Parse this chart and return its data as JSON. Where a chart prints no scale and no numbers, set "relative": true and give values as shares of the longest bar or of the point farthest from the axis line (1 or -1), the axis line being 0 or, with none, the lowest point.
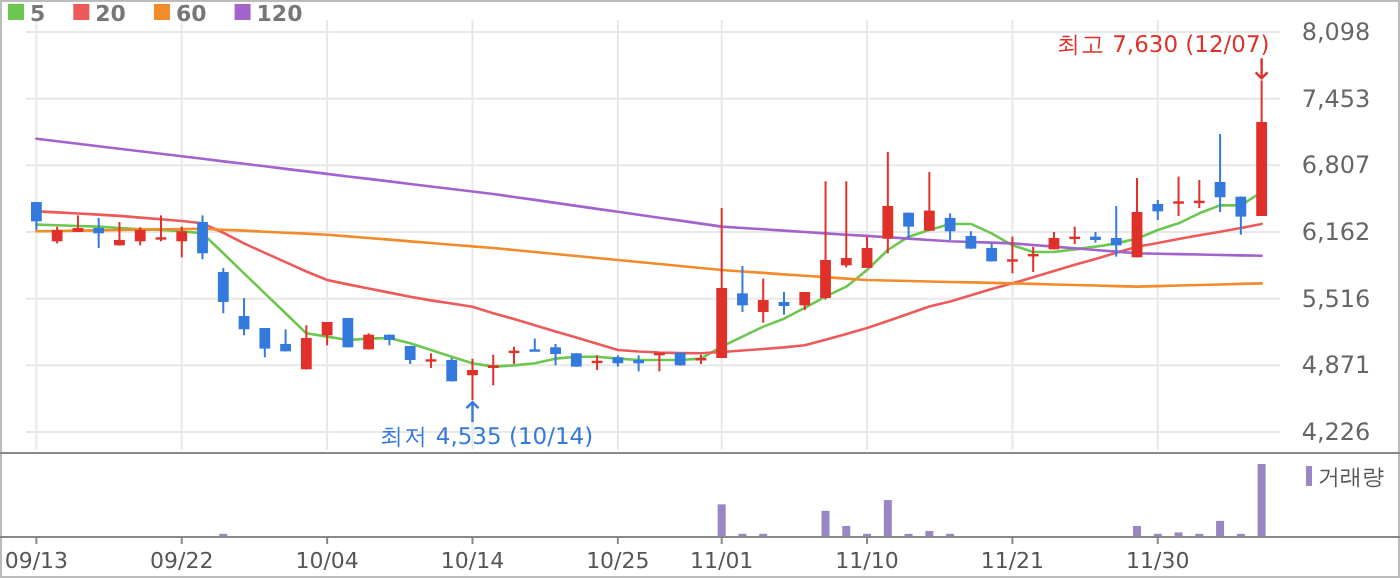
{
  "chart_data": [
    {
      "type": "candlestick",
      "categories": [
        "09/13",
        null,
        null,
        null,
        null,
        null,
        null,
        "09/22",
        null,
        null,
        null,
        null,
        null,
        null,
        "10/04",
        null,
        null,
        null,
        null,
        null,
        null,
        "10/14",
        null,
        null,
        null,
        null,
        null,
        null,
        "10/25",
        null,
        null,
        null,
        null,
        "11/01",
        null,
        null,
        null,
        null,
        null,
        null,
        "11/10",
        null,
        null,
        null,
        null,
        null,
        null,
        "11/21",
        null,
        null,
        null,
        null,
        null,
        null,
        "11/30",
        null,
        null,
        null,
        null,
        null
      ],
      "ohlc": [
        [
          6452,
          6452,
          6181,
          6265
        ],
        [
          6072,
          6214,
          6052,
          6181
        ],
        [
          6162,
          6323,
          6162,
          6201
        ],
        [
          6201,
          6298,
          6007,
          6149
        ],
        [
          6033,
          6259,
          6033,
          6085
        ],
        [
          6072,
          6208,
          6033,
          6181
        ],
        [
          6098,
          6323,
          6072,
          6111
        ],
        [
          6072,
          6214,
          5917,
          6169
        ],
        [
          6259,
          6323,
          5898,
          5956
        ],
        [
          5775,
          5814,
          5375,
          5485
        ],
        [
          5349,
          5523,
          5162,
          5220
        ],
        [
          5233,
          5233,
          4949,
          5033
        ],
        [
          5078,
          5220,
          5007,
          5007
        ],
        [
          4833,
          5259,
          4833,
          5136
        ],
        [
          5162,
          5291,
          5065,
          5291
        ],
        [
          5330,
          5330,
          5046,
          5046
        ],
        [
          5026,
          5181,
          5026,
          5168
        ],
        [
          5168,
          5168,
          5065,
          5117
        ],
        [
          5059,
          5059,
          4884,
          4923
        ],
        [
          4916,
          4988,
          4846,
          4930
        ],
        [
          4923,
          4942,
          4717,
          4717
        ],
        [
          4775,
          4936,
          4535,
          4826
        ],
        [
          4846,
          4975,
          4678,
          4871
        ],
        [
          4994,
          5052,
          4884,
          5013
        ],
        [
          5026,
          5130,
          5013,
          5013
        ],
        [
          5046,
          5078,
          4871,
          4981
        ],
        [
          4988,
          4988,
          4859,
          4859
        ],
        [
          4904,
          4968,
          4826,
          4916
        ],
        [
          4949,
          4968,
          4859,
          4891
        ],
        [
          4923,
          4968,
          4813,
          4891
        ],
        [
          4968,
          4994,
          4813,
          4994
        ],
        [
          4994,
          4994,
          4871,
          4871
        ],
        [
          4923,
          4975,
          4884,
          4942
        ],
        [
          4942,
          6394,
          4942,
          5620
        ],
        [
          5568,
          5833,
          5388,
          5452
        ],
        [
          5388,
          5710,
          5284,
          5504
        ],
        [
          5485,
          5581,
          5362,
          5446
        ],
        [
          5452,
          5581,
          5407,
          5581
        ],
        [
          5523,
          6653,
          5510,
          5891
        ],
        [
          5839,
          6653,
          5820,
          5910
        ],
        [
          5814,
          6117,
          5814,
          6007
        ],
        [
          6098,
          6936,
          5956,
          6414
        ],
        [
          6349,
          6349,
          6104,
          6214
        ],
        [
          6175,
          6743,
          6175,
          6369
        ],
        [
          6298,
          6343,
          6085,
          6169
        ],
        [
          6123,
          6169,
          6001,
          6001
        ],
        [
          6007,
          6052,
          5878,
          5878
        ],
        [
          5878,
          6117,
          5762,
          5898
        ],
        [
          5936,
          6020,
          5775,
          5949
        ],
        [
          5994,
          6162,
          5994,
          6104
        ],
        [
          6104,
          6214,
          6046,
          6117
        ],
        [
          6117,
          6162,
          6059,
          6085
        ],
        [
          6104,
          6414,
          5923,
          6033
        ],
        [
          5917,
          6685,
          5917,
          6356
        ],
        [
          6433,
          6472,
          6278,
          6362
        ],
        [
          6440,
          6698,
          6317,
          6459
        ],
        [
          6452,
          6665,
          6394,
          6465
        ],
        [
          6646,
          7111,
          6356,
          6498
        ],
        [
          6504,
          6504,
          6136,
          6311
        ],
        [
          6317,
          7630,
          6317,
          7227
        ]
      ],
      "colors": [
        "#3479de",
        "#e0302a",
        "#e0302a",
        "#3479de",
        "#e0302a",
        "#e0302a",
        "#e0302a",
        "#e0302a",
        "#3479de",
        "#3479de",
        "#3479de",
        "#3479de",
        "#3479de",
        "#e0302a",
        "#e0302a",
        "#3479de",
        "#e0302a",
        "#3479de",
        "#3479de",
        "#e0302a",
        "#3479de",
        "#e0302a",
        "#e0302a",
        "#e0302a",
        "#3479de",
        "#3479de",
        "#3479de",
        "#e0302a",
        "#3479de",
        "#3479de",
        "#e0302a",
        "#3479de",
        "#e0302a",
        "#e0302a",
        "#3479de",
        "#e0302a",
        "#3479de",
        "#e0302a",
        "#e0302a",
        "#e0302a",
        "#e0302a",
        "#e0302a",
        "#3479de",
        "#e0302a",
        "#3479de",
        "#3479de",
        "#3479de",
        "#e0302a",
        "#e0302a",
        "#e0302a",
        "#e0302a",
        "#3479de",
        "#3479de",
        "#e0302a",
        "#3479de",
        "#e0302a",
        "#e0302a",
        "#3479de",
        "#3479de",
        "#e0302a"
      ],
      "series": [
        {
          "type": "line",
          "name": "5",
          "color": "#6cc74f",
          "values": [
            6233,
            6227,
            6220,
            6214,
            6201,
            6188,
            6181,
            6169,
            6149,
            5956,
            5762,
            5568,
            5375,
            5181,
            5149,
            5117,
            5130,
            5136,
            5085,
            5020,
            4955,
            4891,
            4859,
            4871,
            4891,
            4936,
            4955,
            4955,
            4936,
            4923,
            4923,
            4923,
            4936,
            5052,
            5149,
            5246,
            5323,
            5427,
            5536,
            5633,
            5794,
            5988,
            6117,
            6181,
            6240,
            6240,
            6149,
            6033,
            5969,
            5969,
            5994,
            6020,
            6052,
            6098,
            6181,
            6246,
            6343,
            6420,
            6420,
            6549
          ]
        },
        {
          "type": "line",
          "name": "20",
          "color": "#ee5a5a",
          "values": [
            6362,
            6352,
            6341,
            6330,
            6318,
            6301,
            6285,
            6268,
            6246,
            6155,
            6052,
            5960,
            5870,
            5780,
            5698,
            5655,
            5615,
            5575,
            5535,
            5500,
            5470,
            5439,
            5375,
            5320,
            5260,
            5200,
            5140,
            5080,
            5020,
            5005,
            4995,
            4990,
            4988,
            5001,
            5015,
            5030,
            5045,
            5065,
            5120,
            5175,
            5233,
            5300,
            5370,
            5440,
            5490,
            5550,
            5610,
            5665,
            5725,
            5785,
            5845,
            5900,
            5960,
            6020,
            6055,
            6095,
            6130,
            6165,
            6200,
            6240
          ]
        },
        {
          "type": "line",
          "name": "60",
          "color": "#f28c2a",
          "values": [
            6169,
            6172,
            6175,
            6178,
            6181,
            6185,
            6188,
            6191,
            6194,
            6184,
            6175,
            6165,
            6155,
            6146,
            6136,
            6120,
            6104,
            6088,
            6071,
            6055,
            6039,
            6023,
            6007,
            5988,
            5968,
            5949,
            5930,
            5910,
            5891,
            5872,
            5852,
            5833,
            5814,
            5794,
            5780,
            5766,
            5752,
            5738,
            5725,
            5711,
            5697,
            5692,
            5688,
            5683,
            5678,
            5674,
            5669,
            5665,
            5660,
            5654,
            5649,
            5644,
            5638,
            5633,
            5638,
            5644,
            5649,
            5654,
            5660,
            5665
          ]
        },
        {
          "type": "line",
          "name": "120",
          "color": "#a263cc",
          "values": [
            7065,
            7041,
            7017,
            6992,
            6968,
            6944,
            6919,
            6895,
            6871,
            6846,
            6822,
            6798,
            6773,
            6749,
            6725,
            6700,
            6676,
            6652,
            6627,
            6603,
            6579,
            6554,
            6530,
            6501,
            6473,
            6444,
            6415,
            6386,
            6358,
            6329,
            6300,
            6272,
            6243,
            6214,
            6201,
            6188,
            6175,
            6162,
            6149,
            6136,
            6124,
            6111,
            6098,
            6085,
            6072,
            6065,
            6059,
            6052,
            6036,
            6020,
            6004,
            5988,
            5972,
            5956,
            5952,
            5948,
            5944,
            5940,
            5936,
            5932
          ]
        }
      ],
      "ylim": [
        4226,
        8098
      ],
      "yticks": [
        {
          "value": 4226,
          "label": "4,226"
        },
        {
          "value": 4871,
          "label": "4,871"
        },
        {
          "value": 5516,
          "label": "5,516"
        },
        {
          "value": 6162,
          "label": "6,162"
        },
        {
          "value": 6807,
          "label": "6,807"
        },
        {
          "value": 7453,
          "label": "7,453"
        },
        {
          "value": 8098,
          "label": "8,098"
        }
      ],
      "grid": true,
      "legend": "top left",
      "tick_labels": "y",
      "annotations": [
        "최고 7,630 (12/07)",
        {
          "text": "최저 4,535 (10/14)",
          "x": "10/14",
          "y": 4535
        }
      ]
    },
    {
      "type": "bar",
      "relative": true,
      "categories": [
        "09/13",
        null,
        null,
        null,
        null,
        null,
        null,
        "09/22",
        null,
        null,
        null,
        null,
        null,
        null,
        "10/04",
        null,
        null,
        null,
        null,
        null,
        null,
        "10/14",
        null,
        null,
        null,
        null,
        null,
        null,
        "10/25",
        null,
        null,
        null,
        null,
        "11/01",
        null,
        null,
        null,
        null,
        null,
        null,
        "11/10",
        null,
        null,
        null,
        null,
        null,
        null,
        "11/21",
        null,
        null,
        null,
        null,
        null,
        null,
        "11/30",
        null,
        null,
        null,
        null,
        null
      ],
      "series": [
        {
          "name": "거래량",
          "color": "#9b86c4",
          "values": [
            null,
            null,
            null,
            null,
            null,
            null,
            null,
            null,
            null,
            0.03,
            null,
            null,
            null,
            null,
            null,
            null,
            null,
            null,
            null,
            null,
            null,
            null,
            null,
            null,
            null,
            null,
            null,
            null,
            null,
            null,
            null,
            null,
            null,
            0.44,
            0.03,
            0.03,
            null,
            null,
            0.35,
            0.14,
            0.03,
            0.5,
            0.03,
            0.07,
            0.03,
            null,
            null,
            null,
            null,
            null,
            null,
            null,
            null,
            0.14,
            0.03,
            0.05,
            0.03,
            0.21,
            0.03,
            1
          ]
        }
      ],
      "legend": "top right",
      "tick_labels": "x"
    }
  ]
}
